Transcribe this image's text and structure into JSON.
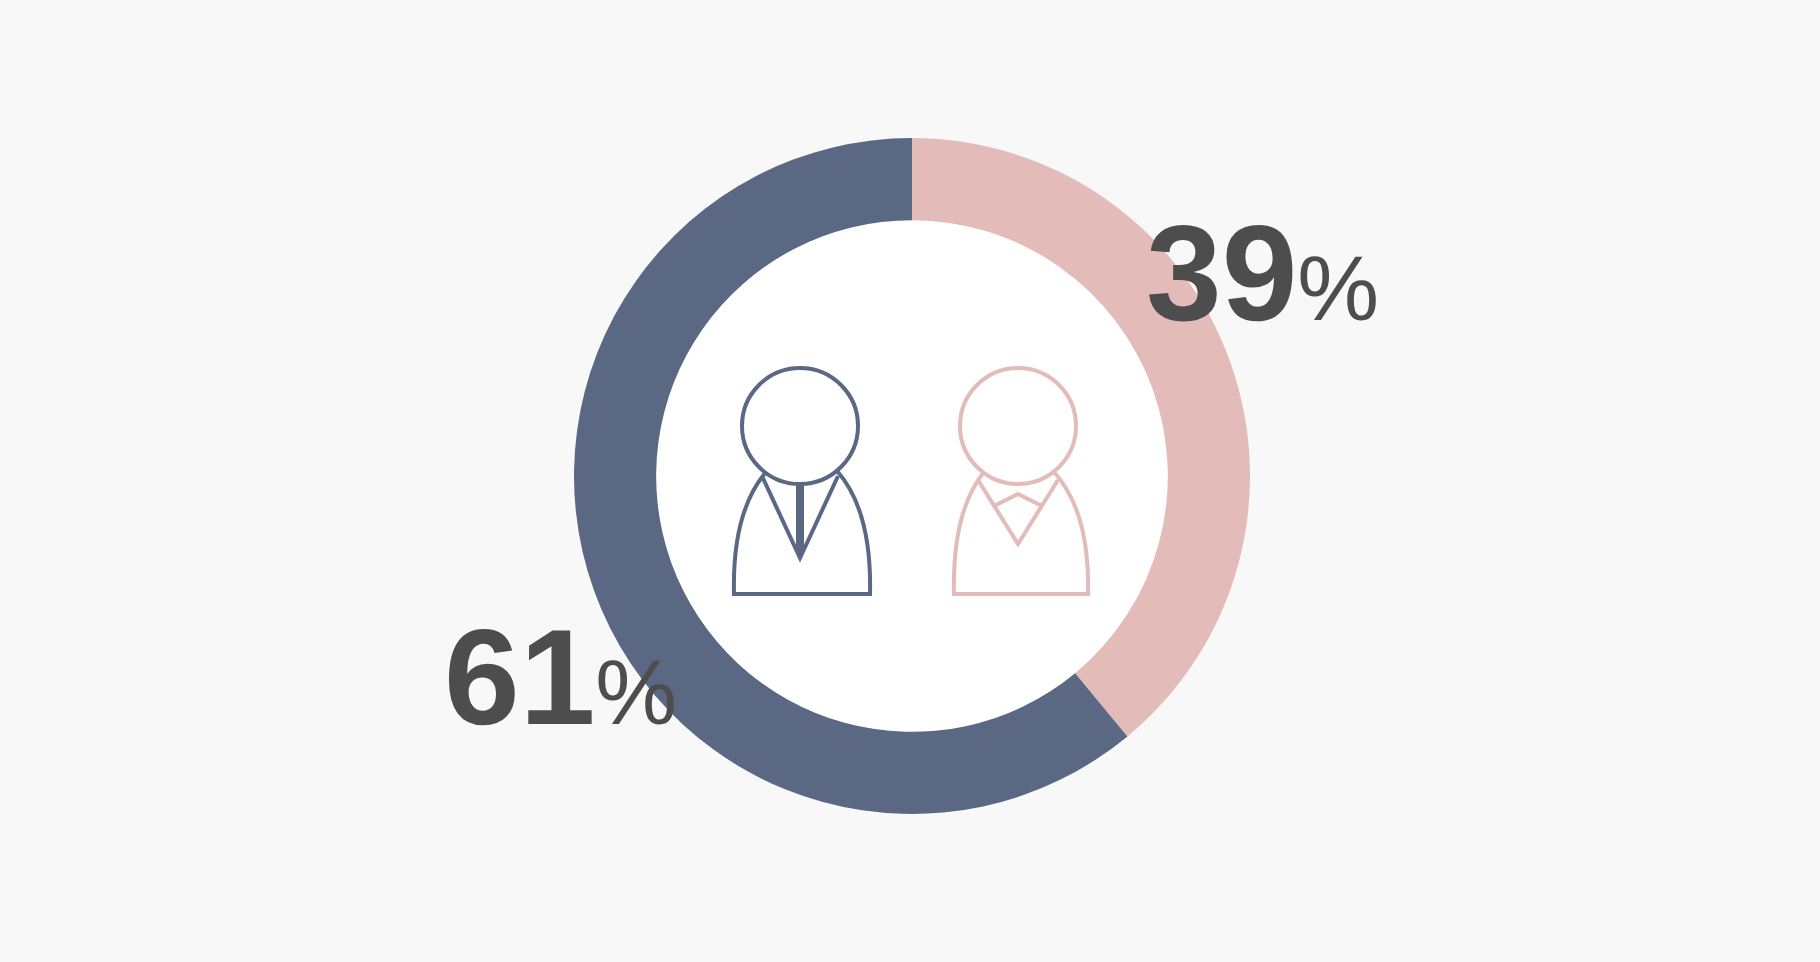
{
  "chart_data": {
    "type": "donut",
    "categories": [
      null,
      null
    ],
    "values": [
      39,
      61
    ],
    "colors": [
      "#e3bbb9",
      "#5a6884"
    ],
    "value_labels": [
      "39%",
      "61%"
    ]
  }
}
